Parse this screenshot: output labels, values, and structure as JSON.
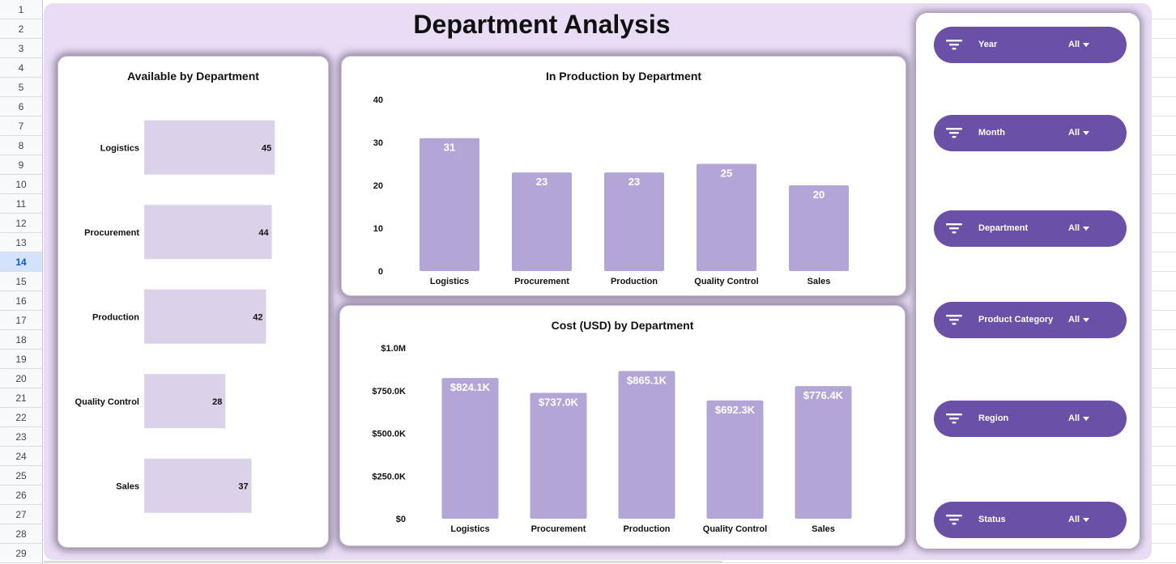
{
  "sheet": {
    "row_numbers": [
      "1",
      "2",
      "3",
      "4",
      "5",
      "6",
      "7",
      "8",
      "9",
      "10",
      "11",
      "12",
      "13",
      "14",
      "15",
      "16",
      "17",
      "18",
      "19",
      "20",
      "21",
      "22",
      "23",
      "24",
      "25",
      "26",
      "27",
      "28",
      "29"
    ],
    "active_row": "14"
  },
  "dashboard": {
    "title": "Department Analysis",
    "bar_color": "#b3a6d6",
    "light_bar_color": "#dbd2ea",
    "accent": "#6a50a7",
    "background": "#e9ddf5"
  },
  "filters": [
    {
      "name": "Year",
      "value": "All",
      "icon": "filter-icon"
    },
    {
      "name": "Month",
      "value": "All",
      "icon": "filter-icon"
    },
    {
      "name": "Department",
      "value": "All",
      "icon": "filter-icon"
    },
    {
      "name": "Product Category",
      "value": "All",
      "icon": "filter-icon"
    },
    {
      "name": "Region",
      "value": "All",
      "icon": "filter-icon"
    },
    {
      "name": "Status",
      "value": "All",
      "icon": "filter-icon"
    }
  ],
  "chart_data": [
    {
      "type": "bar",
      "orientation": "horizontal",
      "title": "Available by Department",
      "categories": [
        "Logistics",
        "Procurement",
        "Production",
        "Quality Control",
        "Sales"
      ],
      "values": [
        45,
        44,
        42,
        28,
        37
      ],
      "data_labels": [
        "45",
        "44",
        "42",
        "28",
        "37"
      ],
      "xlim": [
        0,
        60
      ]
    },
    {
      "type": "bar",
      "title": "In Production by Department",
      "categories": [
        "Logistics",
        "Procurement",
        "Production",
        "Quality Control",
        "Sales"
      ],
      "values": [
        31,
        23,
        23,
        25,
        20
      ],
      "data_labels": [
        "31",
        "23",
        "23",
        "25",
        "20"
      ],
      "ylim": [
        0,
        40
      ],
      "yticks": [
        "0",
        "10",
        "20",
        "30",
        "40"
      ]
    },
    {
      "type": "bar",
      "title": "Cost (USD)  by Department",
      "categories": [
        "Logistics",
        "Procurement",
        "Production",
        "Quality Control",
        "Sales"
      ],
      "values": [
        824100,
        737000,
        865100,
        692300,
        776400
      ],
      "data_labels": [
        "$824.1K",
        "$737.0K",
        "$865.1K",
        "$692.3K",
        "$776.4K"
      ],
      "ylim": [
        0,
        1000000
      ],
      "yticks": [
        "$0",
        "$250.0K",
        "$500.0K",
        "$750.0K",
        "$1.0M"
      ]
    }
  ]
}
